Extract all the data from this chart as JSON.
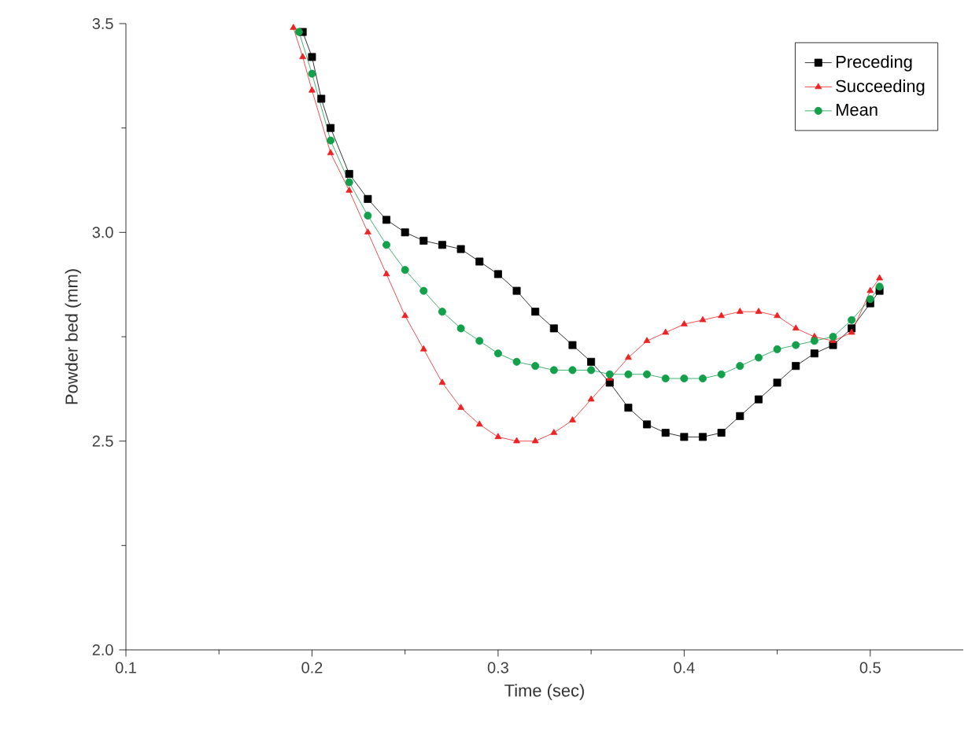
{
  "chart_data": {
    "type": "line",
    "xlabel": "Time (sec)",
    "ylabel": "Powder bed (mm)",
    "xlim": [
      0.1,
      0.55
    ],
    "ylim": [
      2.0,
      3.5
    ],
    "xticks": [
      0.1,
      0.2,
      0.3,
      0.4,
      0.5
    ],
    "yticks": [
      {
        "value": 2.0,
        "label": "2.0"
      },
      {
        "value": 2.5,
        "label": "2.5"
      },
      {
        "value": 3.0,
        "label": "3.0"
      },
      {
        "value": 3.5,
        "label": "3.5"
      }
    ],
    "legend": "top right",
    "grid": false,
    "series": [
      {
        "name": "Preceding",
        "color": "#000000",
        "marker": "square",
        "x": [
          0.195,
          0.2,
          0.205,
          0.21,
          0.22,
          0.23,
          0.24,
          0.25,
          0.26,
          0.27,
          0.28,
          0.29,
          0.3,
          0.31,
          0.32,
          0.33,
          0.34,
          0.35,
          0.36,
          0.37,
          0.38,
          0.39,
          0.4,
          0.41,
          0.42,
          0.43,
          0.44,
          0.45,
          0.46,
          0.47,
          0.48,
          0.49,
          0.5,
          0.505
        ],
        "values": [
          3.48,
          3.42,
          3.32,
          3.25,
          3.14,
          3.08,
          3.03,
          3.0,
          2.98,
          2.97,
          2.96,
          2.93,
          2.9,
          2.86,
          2.81,
          2.77,
          2.73,
          2.69,
          2.64,
          2.58,
          2.54,
          2.52,
          2.51,
          2.51,
          2.52,
          2.56,
          2.6,
          2.64,
          2.68,
          2.71,
          2.73,
          2.77,
          2.83,
          2.86
        ]
      },
      {
        "name": "Succeeding",
        "color": "#ee2222",
        "marker": "triangle",
        "x": [
          0.19,
          0.195,
          0.2,
          0.21,
          0.22,
          0.23,
          0.24,
          0.25,
          0.26,
          0.27,
          0.28,
          0.29,
          0.3,
          0.31,
          0.32,
          0.33,
          0.34,
          0.35,
          0.36,
          0.37,
          0.38,
          0.39,
          0.4,
          0.41,
          0.42,
          0.43,
          0.44,
          0.45,
          0.46,
          0.47,
          0.48,
          0.49,
          0.5,
          0.505
        ],
        "values": [
          3.49,
          3.42,
          3.34,
          3.19,
          3.1,
          3.0,
          2.9,
          2.8,
          2.72,
          2.64,
          2.58,
          2.54,
          2.51,
          2.5,
          2.5,
          2.52,
          2.55,
          2.6,
          2.65,
          2.7,
          2.74,
          2.76,
          2.78,
          2.79,
          2.8,
          2.81,
          2.81,
          2.8,
          2.77,
          2.75,
          2.74,
          2.76,
          2.86,
          2.89
        ]
      },
      {
        "name": "Mean",
        "color": "#12a04a",
        "marker": "circle",
        "x": [
          0.193,
          0.2,
          0.21,
          0.22,
          0.23,
          0.24,
          0.25,
          0.26,
          0.27,
          0.28,
          0.29,
          0.3,
          0.31,
          0.32,
          0.33,
          0.34,
          0.35,
          0.36,
          0.37,
          0.38,
          0.39,
          0.4,
          0.41,
          0.42,
          0.43,
          0.44,
          0.45,
          0.46,
          0.47,
          0.48,
          0.49,
          0.5,
          0.505
        ],
        "values": [
          3.48,
          3.38,
          3.22,
          3.12,
          3.04,
          2.97,
          2.91,
          2.86,
          2.81,
          2.77,
          2.74,
          2.71,
          2.69,
          2.68,
          2.67,
          2.67,
          2.67,
          2.66,
          2.66,
          2.66,
          2.65,
          2.65,
          2.65,
          2.66,
          2.68,
          2.7,
          2.72,
          2.73,
          2.74,
          2.75,
          2.79,
          2.84,
          2.87
        ]
      }
    ]
  }
}
